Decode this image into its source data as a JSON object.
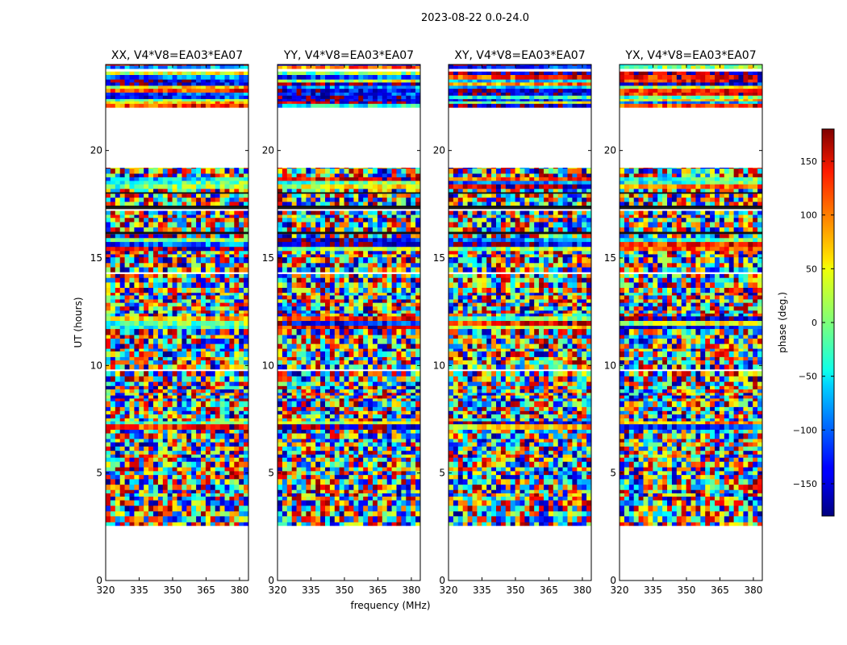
{
  "chart_data": {
    "type": "heatmap",
    "title": "2023-08-22 0.0-24.0",
    "xlabel": "frequency (MHz)",
    "ylabel": "UT (hours)",
    "xlim": [
      320,
      384
    ],
    "ylim": [
      0,
      24
    ],
    "xticks": [
      320,
      335,
      350,
      365,
      380
    ],
    "yticks": [
      0,
      5,
      10,
      15,
      20
    ],
    "panels": [
      {
        "title": "XX, V4*V8=EA03*EA07",
        "pol": "XX"
      },
      {
        "title": "YY, V4*V8=EA03*EA07",
        "pol": "YY"
      },
      {
        "title": "XY, V4*V8=EA03*EA07",
        "pol": "XY"
      },
      {
        "title": "YX, V4*V8=EA03*EA07",
        "pol": "YX"
      }
    ],
    "data_time_ranges": [
      [
        2.55,
        19.2
      ],
      [
        22.0,
        24.0
      ]
    ],
    "no_data_gaps": [
      [
        0,
        2.55
      ],
      [
        19.2,
        22.0
      ]
    ],
    "colorbar": {
      "label": "phase (deg.)",
      "range": [
        -180,
        180
      ],
      "ticks": [
        150,
        100,
        50,
        0,
        -50,
        -100,
        -150
      ],
      "colormap": "jet"
    }
  }
}
